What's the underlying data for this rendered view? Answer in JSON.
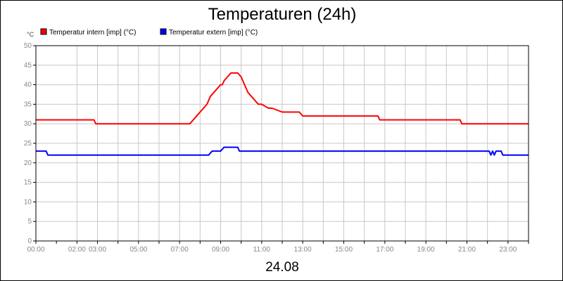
{
  "chart_data": {
    "type": "line",
    "title": "Temperaturen (24h)",
    "ylabel": "°C",
    "xlabel": "24.08",
    "ylim": [
      0,
      50
    ],
    "yticks": [
      0,
      5,
      10,
      15,
      20,
      25,
      30,
      35,
      40,
      45,
      50
    ],
    "ytick_labels": [
      "0",
      "5",
      "10",
      "15",
      "20",
      "25",
      "30",
      "35",
      "40",
      "45",
      "50"
    ],
    "xlim": [
      "00:00",
      "24:00"
    ],
    "xtick_labels": [
      "00:00",
      "02:00",
      "03:00",
      "05:00",
      "07:00",
      "09:00",
      "11:00",
      "13:00",
      "15:00",
      "17:00",
      "19:00",
      "21:00",
      "23:00"
    ],
    "xtick_values": [
      "00:00",
      "02:00",
      "03:00",
      "05:00",
      "07:00",
      "09:00",
      "11:00",
      "13:00",
      "15:00",
      "17:00",
      "19:00",
      "21:00",
      "23:00"
    ],
    "grid": true,
    "legend_position": "top-left",
    "series": [
      {
        "name": "Temperatur intern [imp] (°C)",
        "color": "#ff0000",
        "x": [
          "00:00",
          "02:50",
          "02:55",
          "07:30",
          "07:40",
          "07:50",
          "08:00",
          "08:10",
          "08:20",
          "08:30",
          "08:40",
          "08:50",
          "09:00",
          "09:05",
          "09:10",
          "09:20",
          "09:30",
          "09:40",
          "09:50",
          "10:00",
          "10:10",
          "10:20",
          "10:30",
          "10:40",
          "10:50",
          "11:00",
          "11:20",
          "11:30",
          "12:00",
          "12:50",
          "13:00",
          "16:40",
          "16:45",
          "20:40",
          "20:45",
          "24:00"
        ],
        "y": [
          31,
          31,
          30,
          30,
          31,
          32,
          33,
          34,
          35,
          37,
          38,
          39,
          40,
          40,
          41,
          42,
          43,
          43,
          43,
          42,
          40,
          38,
          37,
          36,
          35,
          35,
          34,
          34,
          33,
          33,
          32,
          32,
          31,
          31,
          30,
          30
        ]
      },
      {
        "name": "Temperatur extern [imp] (°C)",
        "color": "#0000ff",
        "x": [
          "00:00",
          "00:30",
          "00:35",
          "08:25",
          "08:35",
          "09:00",
          "09:10",
          "09:50",
          "09:55",
          "22:05",
          "22:10",
          "22:15",
          "22:20",
          "22:25",
          "22:30",
          "22:40",
          "22:45",
          "24:00"
        ],
        "y": [
          23,
          23,
          22,
          22,
          23,
          23,
          24,
          24,
          23,
          23,
          22,
          23,
          22,
          23,
          23,
          23,
          22,
          22
        ]
      }
    ]
  }
}
